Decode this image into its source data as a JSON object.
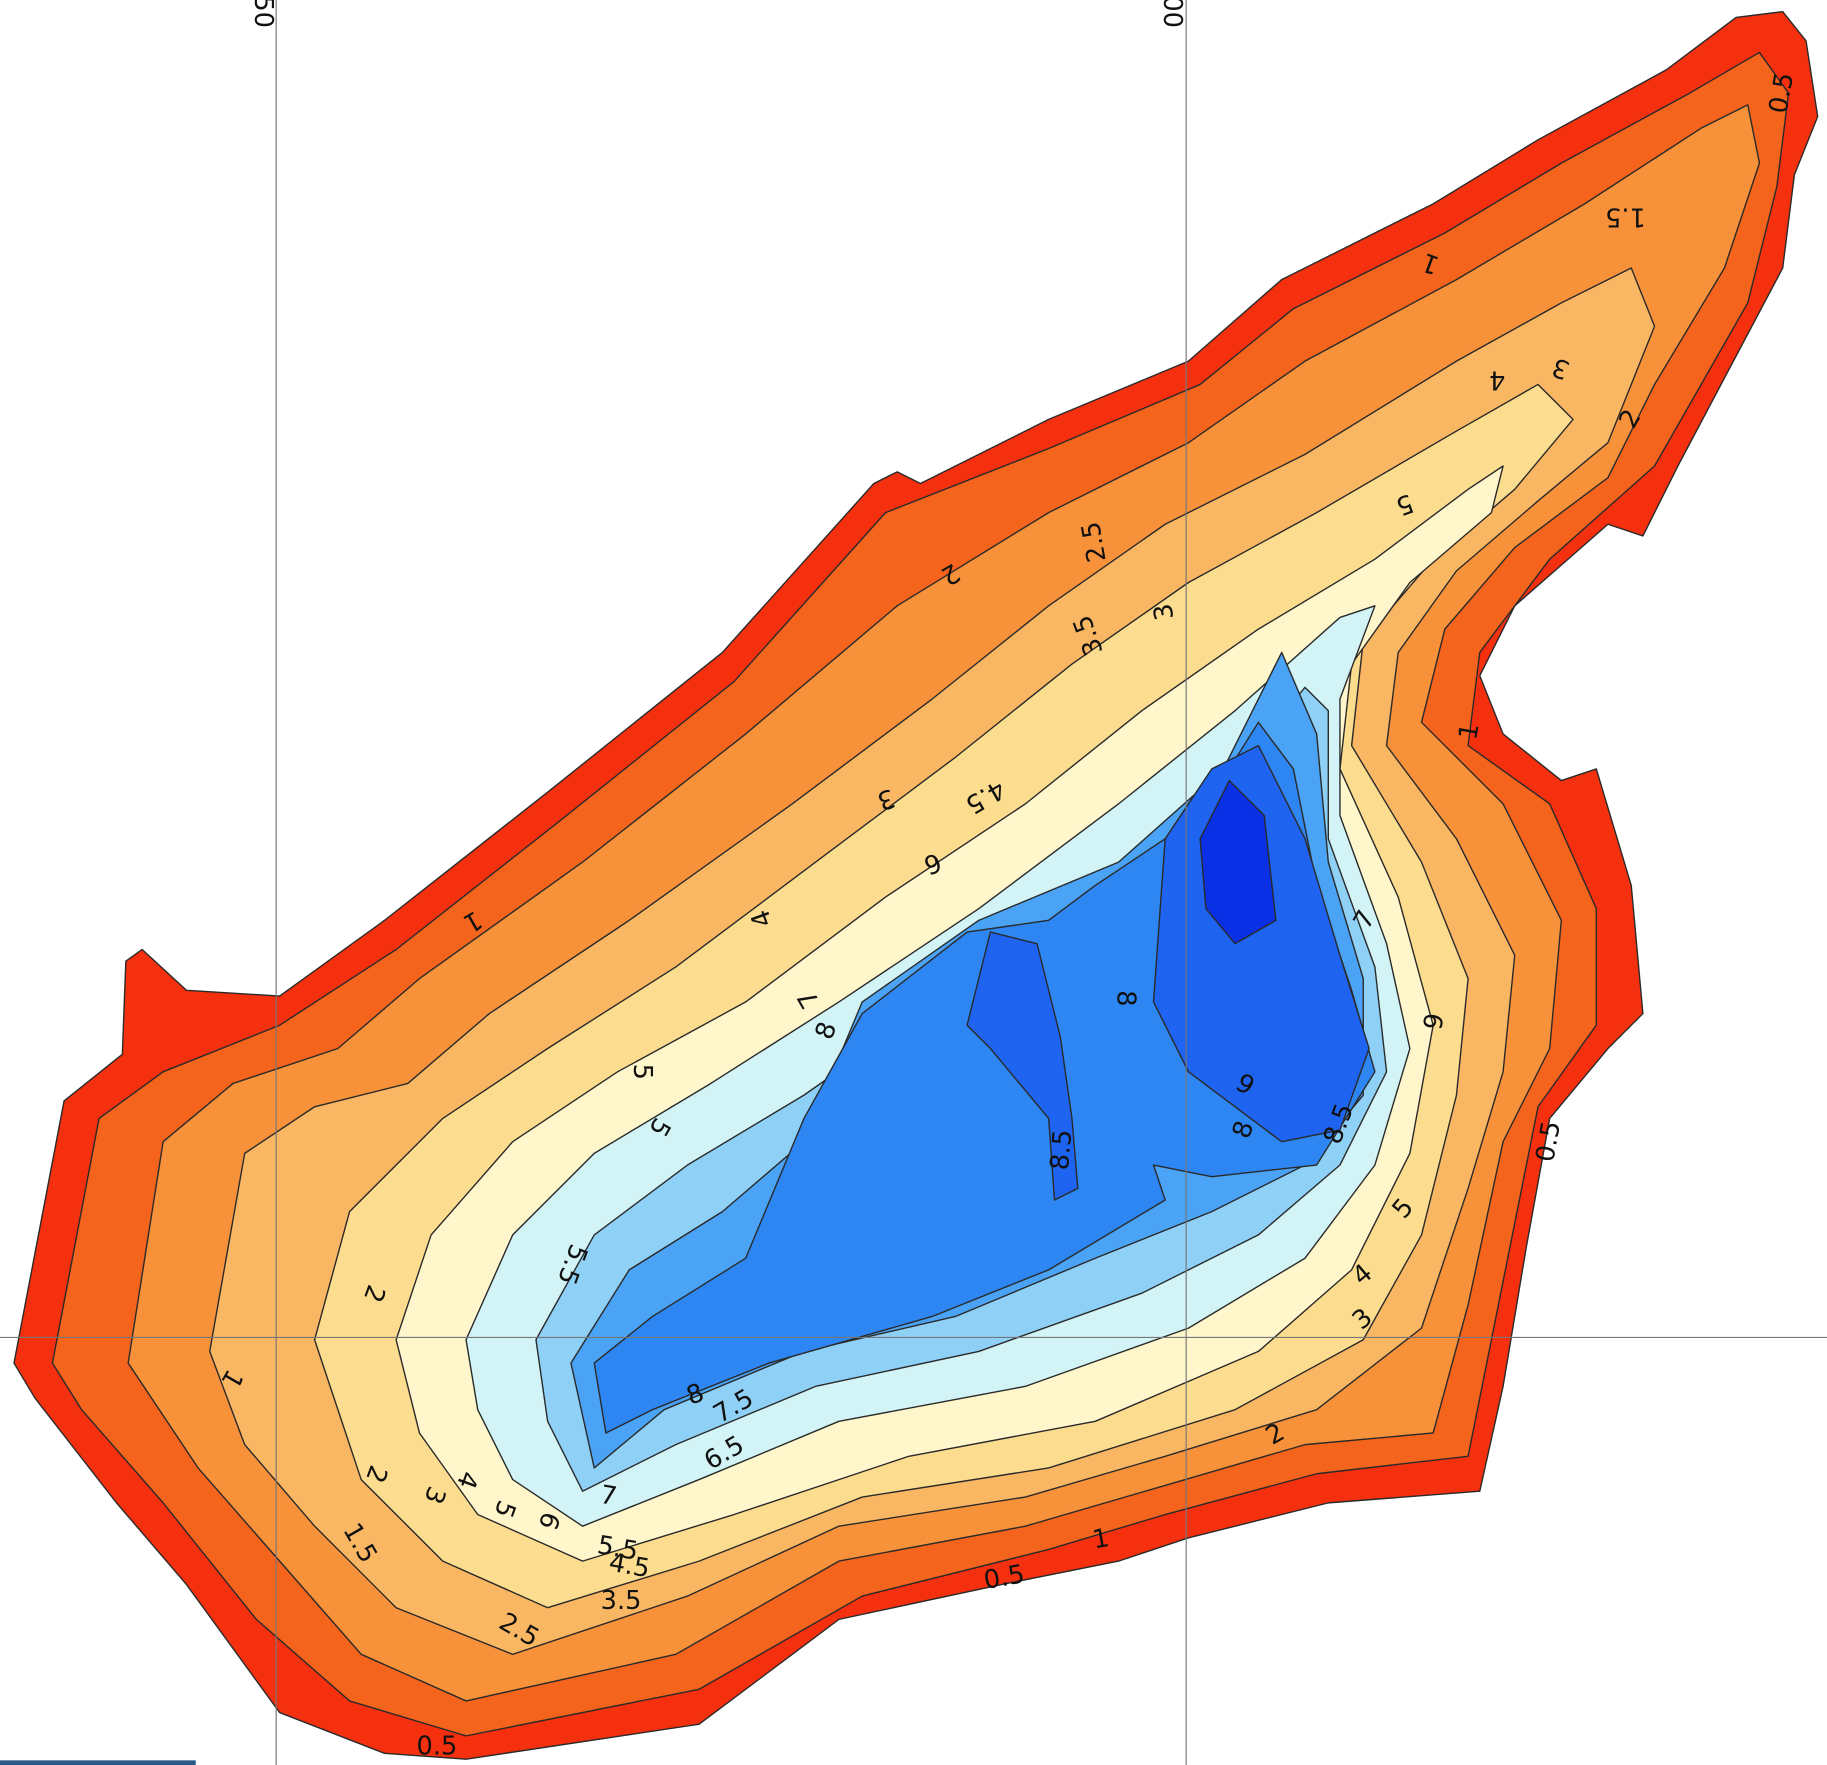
{
  "grid_labels": [
    "50",
    "00"
  ],
  "contour_labels": [
    "0.5",
    "1.5",
    "1",
    "3",
    "4",
    "2",
    "5",
    "2.5",
    "2",
    "3",
    "3.5",
    "1",
    "3",
    "4.5",
    "6",
    "1",
    "4",
    "7",
    "8",
    "7",
    "8",
    "9",
    "5",
    "9",
    "5",
    "8",
    "8.5",
    "8.5",
    "0.5",
    "5",
    "5.5",
    "2",
    "4",
    "3",
    "1",
    "8",
    "7.5",
    "6.5",
    "2",
    "2",
    "3",
    "4",
    "5",
    "6",
    "7",
    "1.5",
    "5.5",
    "4.5",
    "1",
    "0.5",
    "3.5",
    "2.5",
    "0.5"
  ]
}
